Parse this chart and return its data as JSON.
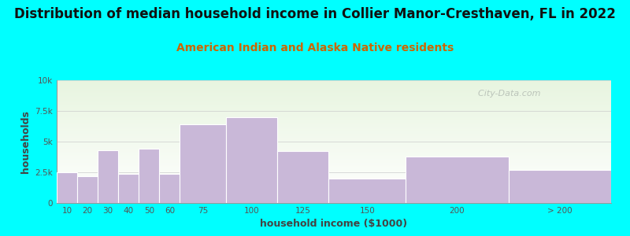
{
  "title": "Distribution of median household income in Collier Manor-Cresthaven, FL in 2022",
  "subtitle": "American Indian and Alaska Native residents",
  "xlabel": "household income ($1000)",
  "ylabel": "households",
  "bar_labels": [
    "10",
    "20",
    "30",
    "40",
    "50",
    "60",
    "75",
    "100",
    "125",
    "150",
    "200",
    "> 200"
  ],
  "bar_heights": [
    2500,
    2200,
    4300,
    2400,
    4400,
    2400,
    6400,
    7000,
    4200,
    2000,
    3800,
    2700
  ],
  "bar_color": "#c9b8d8",
  "bg_color": "#00ffff",
  "plot_bg_top": "#e8f5e0",
  "plot_bg_bottom": "#f8fff8",
  "ylim": [
    0,
    10000
  ],
  "yticks": [
    0,
    2500,
    5000,
    7500,
    10000
  ],
  "ytick_labels": [
    "0",
    "2.5k",
    "5k",
    "7.5k",
    "10k"
  ],
  "title_fontsize": 12,
  "subtitle_fontsize": 10,
  "subtitle_color": "#cc6600",
  "watermark": "  City-Data.com",
  "watermark_color": "#b0b8b0"
}
